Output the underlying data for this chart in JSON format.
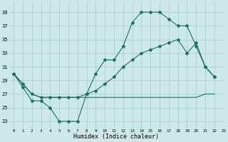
{
  "xlabel": "Humidex (Indice chaleur)",
  "bg_color": "#cce8e8",
  "grid_color": "#aacece",
  "line_color": "#1a7060",
  "xlim": [
    -0.5,
    23
  ],
  "ylim": [
    22,
    40.5
  ],
  "yticks": [
    23,
    25,
    27,
    29,
    31,
    33,
    35,
    37,
    39
  ],
  "xticks": [
    0,
    1,
    2,
    3,
    4,
    5,
    6,
    7,
    8,
    9,
    10,
    11,
    12,
    13,
    14,
    15,
    16,
    17,
    18,
    19,
    20,
    21,
    22,
    23
  ],
  "line1_x": [
    0,
    1,
    2,
    3,
    4,
    5,
    6,
    7,
    8,
    9,
    10,
    11,
    12,
    13,
    14,
    15,
    16,
    17,
    18,
    19,
    20,
    21,
    22
  ],
  "line1_y": [
    30,
    28,
    26,
    26,
    25,
    23,
    23,
    23,
    27,
    30,
    32,
    32,
    34,
    37.5,
    39,
    39,
    39,
    38,
    37,
    37,
    34,
    31,
    29.5
  ],
  "line2_x": [
    0,
    1,
    2,
    3,
    4,
    5,
    6,
    7,
    8,
    9,
    10,
    11,
    12,
    13,
    14,
    15,
    16,
    17,
    18,
    19,
    20,
    21,
    22
  ],
  "line2_y": [
    30,
    28.5,
    27,
    26.5,
    26.5,
    26.5,
    26.5,
    26.5,
    26.5,
    26.5,
    26.5,
    26.5,
    26.5,
    26.5,
    26.5,
    26.5,
    26.5,
    26.5,
    26.5,
    26.5,
    26.5,
    27,
    27
  ],
  "line3_x": [
    0,
    1,
    2,
    3,
    4,
    5,
    6,
    7,
    8,
    9,
    10,
    11,
    12,
    13,
    14,
    15,
    16,
    17,
    18,
    19,
    20,
    21,
    22
  ],
  "line3_y": [
    30,
    28.5,
    27,
    26.5,
    26.5,
    26.5,
    26.5,
    26.5,
    27,
    27.5,
    28.5,
    29.5,
    31,
    32,
    33,
    33.5,
    34,
    34.5,
    35,
    33,
    34.5,
    31,
    29.5
  ]
}
